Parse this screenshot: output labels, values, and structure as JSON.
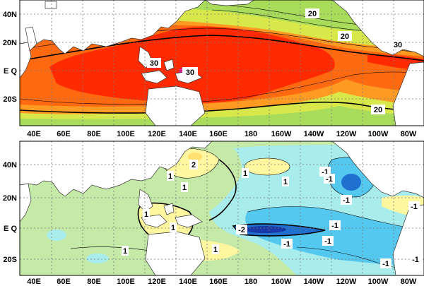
{
  "top_panel": {
    "y_labels": [
      "40N",
      "20N",
      "E Q",
      "20S"
    ],
    "x_labels": [
      "40E",
      "60E",
      "80E",
      "100E",
      "120E",
      "140E",
      "160E",
      "180",
      "160W",
      "140W",
      "120W",
      "100W",
      "80W"
    ],
    "contour_labels": [
      "20",
      "20",
      "30",
      "30",
      "30",
      "20"
    ],
    "colors": {
      "hot": "#ff2a00",
      "warm": "#ff7f1a",
      "mid": "#ffc030",
      "cool": "#b8e06a",
      "cold": "#3cbf4f",
      "peak": "#e0208a",
      "land": "#ffffff"
    }
  },
  "bottom_panel": {
    "y_labels": [
      "40N",
      "20N",
      "E Q",
      "20S"
    ],
    "x_labels": [
      "40E",
      "60E",
      "80E",
      "100E",
      "120E",
      "140E",
      "160E",
      "180",
      "160W",
      "140W",
      "120W",
      "100W",
      "80W"
    ],
    "contour_labels": [
      "2",
      "1",
      "1",
      "1",
      "1",
      "-1",
      "-1",
      "-1",
      "1",
      "-2",
      "-1",
      "1",
      "1",
      "-1",
      "-1",
      "-1",
      "-1",
      "1",
      "-1"
    ],
    "colors": {
      "base": "#c5eaa8",
      "pos": "#fff7a0",
      "pos2": "#ffe070",
      "neg1": "#a8ecec",
      "neg2": "#55c8f0",
      "neg3": "#2070d0",
      "neg4": "#1838a8"
    }
  }
}
